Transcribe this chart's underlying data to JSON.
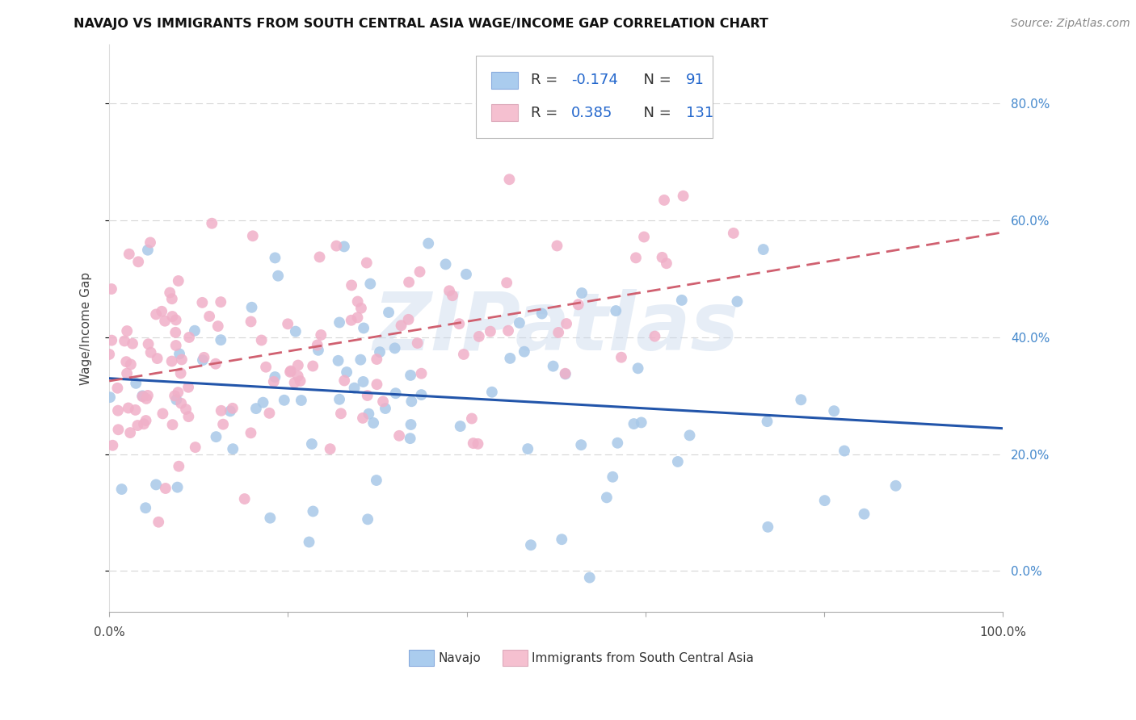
{
  "title": "NAVAJO VS IMMIGRANTS FROM SOUTH CENTRAL ASIA WAGE/INCOME GAP CORRELATION CHART",
  "source": "Source: ZipAtlas.com",
  "ylabel": "Wage/Income Gap",
  "watermark": "ZIPatlas",
  "legend_navajo_R": "-0.174",
  "legend_navajo_N": "91",
  "legend_imm_R": "0.385",
  "legend_imm_N": "131",
  "navajo_color": "#a8c8e8",
  "navajo_line_color": "#2255aa",
  "immigrants_color": "#f0b0c8",
  "immigrants_line_color": "#d06070",
  "background_color": "#ffffff",
  "grid_color": "#cccccc",
  "ytick_labels": [
    "0.0%",
    "20.0%",
    "40.0%",
    "60.0%",
    "80.0%"
  ],
  "ytick_values": [
    0.0,
    0.2,
    0.4,
    0.6,
    0.8
  ],
  "xlim": [
    0.0,
    1.0
  ],
  "ylim": [
    -0.07,
    0.9
  ],
  "right_label_color": "#4488cc",
  "title_color": "#111111",
  "source_color": "#888888"
}
